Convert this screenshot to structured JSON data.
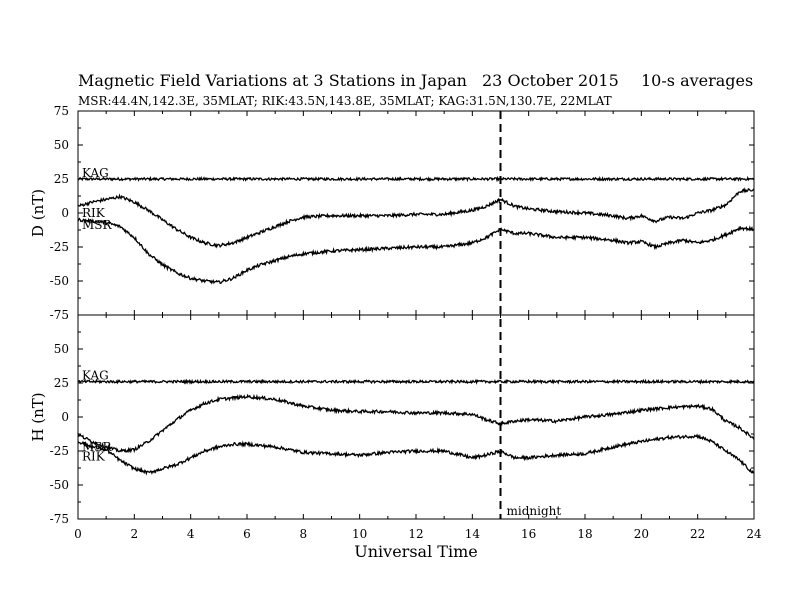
{
  "chart_data": {
    "type": "line",
    "title": "Magnetic Field Variations at 3 Stations in Japan",
    "date": "23 October 2015",
    "averaging": "10-s averages",
    "stations_info": "MSR:44.4N,142.3E, 35MLAT;  RIK:43.5N,143.8E, 35MLAT;  KAG:31.5N,130.7E, 22MLAT",
    "xlabel": "Universal Time",
    "xlim": [
      0,
      24
    ],
    "xticks": [
      0,
      2,
      4,
      6,
      8,
      10,
      12,
      14,
      16,
      18,
      20,
      22,
      24
    ],
    "vline": {
      "x": 15,
      "label": "midnight"
    },
    "panels": [
      {
        "ylabel": "D (nT)",
        "ylim": [
          -75,
          75
        ],
        "yticks": [
          75,
          50,
          25,
          0,
          -25,
          -50,
          -75
        ],
        "series": [
          {
            "name": "KAG",
            "x": [
              0,
              24
            ],
            "y": [
              25,
              25
            ]
          },
          {
            "name": "RIK",
            "x": [
              0,
              0.5,
              1,
              1.5,
              2,
              2.5,
              3,
              3.5,
              4,
              4.5,
              5,
              5.5,
              6,
              6.5,
              7,
              7.5,
              8,
              9,
              10,
              11,
              12,
              13,
              14,
              14.5,
              15,
              15.5,
              16,
              17,
              18,
              19,
              19.5,
              20,
              20.5,
              21,
              21.5,
              22,
              22.5,
              23,
              23.5,
              24
            ],
            "y": [
              5,
              8,
              10,
              12,
              8,
              2,
              -5,
              -12,
              -18,
              -22,
              -24,
              -22,
              -18,
              -14,
              -10,
              -6,
              -3,
              -2,
              -2,
              -2,
              -1,
              -1,
              2,
              5,
              10,
              5,
              3,
              1,
              0,
              -2,
              -4,
              -2,
              -6,
              -3,
              -4,
              0,
              2,
              6,
              16,
              17
            ]
          },
          {
            "name": "MSR",
            "x": [
              0,
              0.5,
              1,
              1.5,
              2,
              2.5,
              3,
              3.5,
              4,
              4.5,
              5,
              5.5,
              6,
              6.5,
              7,
              7.5,
              8,
              9,
              10,
              11,
              12,
              13,
              14,
              14.5,
              15,
              15.5,
              16,
              17,
              18,
              19,
              19.5,
              20,
              20.5,
              21,
              21.5,
              22,
              22.5,
              23,
              23.5,
              24
            ],
            "y": [
              -5,
              -6,
              -7,
              -10,
              -18,
              -30,
              -38,
              -44,
              -48,
              -50,
              -51,
              -48,
              -42,
              -38,
              -35,
              -32,
              -30,
              -28,
              -27,
              -26,
              -25,
              -25,
              -22,
              -18,
              -12,
              -15,
              -15,
              -18,
              -18,
              -20,
              -22,
              -21,
              -25,
              -22,
              -20,
              -22,
              -20,
              -16,
              -11,
              -12
            ]
          }
        ]
      },
      {
        "ylabel": "H (nT)",
        "ylim": [
          -75,
          75
        ],
        "yticks": [
          75,
          50,
          25,
          0,
          -25,
          -50,
          -75
        ],
        "series": [
          {
            "name": "KAG",
            "x": [
              0,
              24
            ],
            "y": [
              26,
              26
            ]
          },
          {
            "name": "MSR",
            "x": [
              0,
              0.5,
              1,
              1.5,
              2,
              2.5,
              3,
              3.5,
              4,
              4.5,
              5,
              5.5,
              6,
              7,
              8,
              9,
              10,
              11,
              12,
              13,
              14,
              14.5,
              15,
              15.5,
              16,
              17,
              18,
              19,
              20,
              21,
              22,
              22.5,
              23,
              23.5,
              24
            ],
            "y": [
              -13,
              -18,
              -22,
              -25,
              -24,
              -18,
              -10,
              -2,
              5,
              10,
              13,
              14,
              15,
              13,
              8,
              5,
              4,
              4,
              3,
              3,
              2,
              -2,
              -5,
              -3,
              -2,
              -3,
              0,
              2,
              5,
              7,
              8,
              6,
              -3,
              -8,
              -16
            ]
          },
          {
            "name": "RIK",
            "x": [
              0,
              0.5,
              1,
              1.5,
              2,
              2.5,
              3,
              3.5,
              4,
              4.5,
              5,
              5.5,
              6,
              7,
              8,
              9,
              10,
              11,
              12,
              13,
              14,
              14.5,
              15,
              15.5,
              16,
              17,
              18,
              19,
              20,
              21,
              22,
              22.5,
              23,
              23.5,
              24
            ],
            "y": [
              -18,
              -22,
              -24,
              -32,
              -38,
              -41,
              -38,
              -35,
              -30,
              -25,
              -22,
              -20,
              -20,
              -22,
              -26,
              -27,
              -28,
              -26,
              -25,
              -25,
              -30,
              -28,
              -25,
              -30,
              -30,
              -28,
              -27,
              -22,
              -18,
              -15,
              -14,
              -18,
              -25,
              -32,
              -42
            ]
          }
        ]
      }
    ]
  }
}
